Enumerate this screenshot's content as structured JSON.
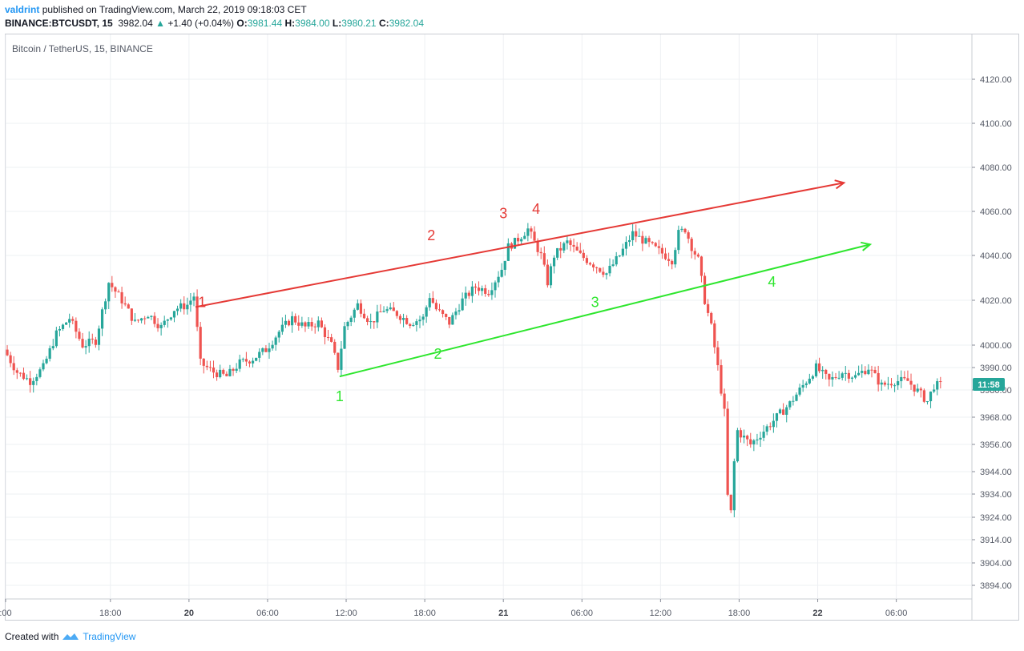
{
  "header": {
    "author": "valdrint",
    "published": "published on TradingView.com, March 22, 2019 09:18:03 CET",
    "symbol_line": "BINANCE:BTCUSDT, 15",
    "last": "3982.04",
    "change": "+1.40 (+0.04%)",
    "o_label": "O:",
    "o_val": "3981.44",
    "h_label": "H:",
    "h_val": "3984.00",
    "l_label": "L:",
    "l_val": "3980.21",
    "c_label": "C:",
    "c_val": "3982.04"
  },
  "symbol_title": "Bitcoin / TetherUS, 15, BINANCE",
  "price_badge": "11:58",
  "footer": {
    "created_with": "Created with",
    "brand": "TradingView"
  },
  "colors": {
    "up": "#26a69a",
    "down": "#ef5350",
    "red_line": "#e53935",
    "green_line": "#2ee62e",
    "badge": "#26a69a",
    "author": "#2196f3"
  },
  "chart_data": {
    "type": "candlestick",
    "title": "Bitcoin / TetherUS, 15, BINANCE",
    "interval": "15",
    "y_axis": {
      "ticks": [
        4120,
        4100,
        4080,
        4060,
        4040,
        4020,
        4000,
        3990,
        3980,
        3968,
        3956,
        3944,
        3934,
        3924,
        3914,
        3904,
        3894
      ]
    },
    "x_axis": {
      "start_hour": 10,
      "end_hour": 81.5,
      "ticks": [
        {
          "label": ":00",
          "hour": 10,
          "bold": false
        },
        {
          "label": "18:00",
          "hour": 18,
          "bold": false
        },
        {
          "label": "20",
          "hour": 24,
          "bold": true
        },
        {
          "label": "06:00",
          "hour": 30,
          "bold": false
        },
        {
          "label": "12:00",
          "hour": 36,
          "bold": false
        },
        {
          "label": "18:00",
          "hour": 42,
          "bold": false
        },
        {
          "label": "21",
          "hour": 48,
          "bold": true
        },
        {
          "label": "06:00",
          "hour": 54,
          "bold": false
        },
        {
          "label": "12:00",
          "hour": 60,
          "bold": false
        },
        {
          "label": "18:00",
          "hour": 66,
          "bold": false
        },
        {
          "label": "22",
          "hour": 72,
          "bold": true
        },
        {
          "label": "06:00",
          "hour": 78,
          "bold": false
        }
      ]
    },
    "price_anchors": [
      [
        10.0,
        3998
      ],
      [
        11.0,
        3988
      ],
      [
        12.0,
        3984
      ],
      [
        13.0,
        3990
      ],
      [
        14.0,
        4005
      ],
      [
        15.0,
        4012
      ],
      [
        16.0,
        4000
      ],
      [
        17.0,
        4002
      ],
      [
        18.0,
        4028
      ],
      [
        19.0,
        4020
      ],
      [
        20.0,
        4010
      ],
      [
        21.0,
        4014
      ],
      [
        22.0,
        4008
      ],
      [
        23.0,
        4016
      ],
      [
        24.0,
        4018
      ],
      [
        24.5,
        4022
      ],
      [
        25.0,
        3992
      ],
      [
        26.0,
        3988
      ],
      [
        27.0,
        3986
      ],
      [
        28.0,
        3992
      ],
      [
        29.0,
        3994
      ],
      [
        30.0,
        3998
      ],
      [
        31.0,
        4006
      ],
      [
        32.0,
        4012
      ],
      [
        33.0,
        4008
      ],
      [
        34.0,
        4010
      ],
      [
        35.0,
        4000
      ],
      [
        35.5,
        3990
      ],
      [
        36.0,
        4008
      ],
      [
        37.0,
        4018
      ],
      [
        38.0,
        4010
      ],
      [
        39.0,
        4016
      ],
      [
        40.0,
        4014
      ],
      [
        41.0,
        4010
      ],
      [
        42.0,
        4012
      ],
      [
        42.5,
        4022
      ],
      [
        43.0,
        4016
      ],
      [
        44.0,
        4010
      ],
      [
        45.0,
        4020
      ],
      [
        46.0,
        4026
      ],
      [
        47.0,
        4024
      ],
      [
        48.0,
        4034
      ],
      [
        48.5,
        4044
      ],
      [
        49.0,
        4046
      ],
      [
        50.0,
        4052
      ],
      [
        51.0,
        4040
      ],
      [
        51.5,
        4028
      ],
      [
        52.0,
        4040
      ],
      [
        53.0,
        4046
      ],
      [
        54.0,
        4040
      ],
      [
        55.0,
        4036
      ],
      [
        56.0,
        4032
      ],
      [
        57.0,
        4040
      ],
      [
        58.0,
        4050
      ],
      [
        59.0,
        4046
      ],
      [
        60.0,
        4042
      ],
      [
        61.0,
        4038
      ],
      [
        61.5,
        4050
      ],
      [
        62.0,
        4052
      ],
      [
        62.5,
        4044
      ],
      [
        63.0,
        4038
      ],
      [
        63.5,
        4020
      ],
      [
        64.0,
        4008
      ],
      [
        64.5,
        3990
      ],
      [
        65.0,
        3970
      ],
      [
        65.2,
        3940
      ],
      [
        65.4,
        3912
      ],
      [
        65.6,
        3940
      ],
      [
        66.0,
        3962
      ],
      [
        67.0,
        3956
      ],
      [
        68.0,
        3962
      ],
      [
        69.0,
        3968
      ],
      [
        70.0,
        3974
      ],
      [
        71.0,
        3982
      ],
      [
        72.0,
        3990
      ],
      [
        73.0,
        3984
      ],
      [
        74.0,
        3988
      ],
      [
        75.0,
        3986
      ],
      [
        76.0,
        3990
      ],
      [
        77.0,
        3982
      ],
      [
        78.0,
        3984
      ],
      [
        79.0,
        3984
      ],
      [
        80.0,
        3978
      ],
      [
        80.5,
        3975
      ],
      [
        81.0,
        3982
      ]
    ],
    "annotations": {
      "red_channel": {
        "from": {
          "hour": 24.5,
          "price": 4017
        },
        "to": {
          "hour": 74.0,
          "price": 4073
        },
        "labels": [
          {
            "text": "1",
            "hour": 25.0,
            "price": 4017
          },
          {
            "text": "2",
            "hour": 42.5,
            "price": 4047
          },
          {
            "text": "3",
            "hour": 48.0,
            "price": 4057
          },
          {
            "text": "4",
            "hour": 50.5,
            "price": 4059
          }
        ]
      },
      "green_channel": {
        "from": {
          "hour": 35.5,
          "price": 3986
        },
        "to": {
          "hour": 76.0,
          "price": 4045
        },
        "labels": [
          {
            "text": "1",
            "hour": 35.5,
            "price": 3975
          },
          {
            "text": "2",
            "hour": 43.0,
            "price": 3994
          },
          {
            "text": "3",
            "hour": 55.0,
            "price": 4017
          },
          {
            "text": "4",
            "hour": 68.5,
            "price": 4026
          }
        ]
      }
    }
  }
}
